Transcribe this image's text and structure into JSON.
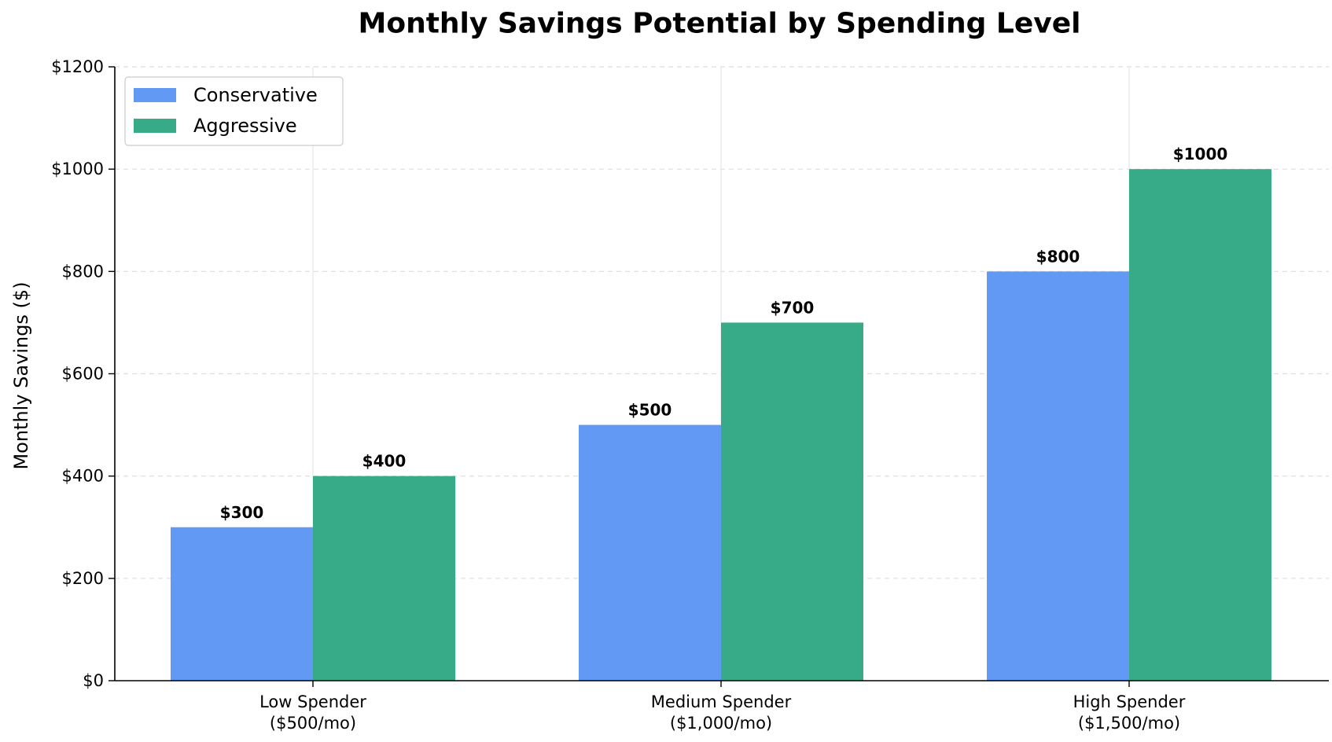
{
  "chart_data": {
    "type": "bar",
    "title": "Monthly Savings Potential by Spending Level",
    "xlabel": "",
    "ylabel": "Monthly Savings ($)",
    "categories": [
      [
        "Low Spender",
        "($500/mo)"
      ],
      [
        "Medium Spender",
        "($1,000/mo)"
      ],
      [
        "High Spender",
        "($1,500/mo)"
      ]
    ],
    "series": [
      {
        "name": "Conservative",
        "values": [
          300,
          500,
          800
        ],
        "labels": [
          "$300",
          "$500",
          "$800"
        ],
        "color": "#6199F5"
      },
      {
        "name": "Aggressive",
        "values": [
          400,
          700,
          1000
        ],
        "labels": [
          "$400",
          "$700",
          "$1000"
        ],
        "color": "#37AA88"
      }
    ],
    "ylim": [
      0,
      1200
    ],
    "yticks": [
      0,
      200,
      400,
      600,
      800,
      1000,
      1200
    ],
    "ytick_labels": [
      "$0",
      "$200",
      "$400",
      "$600",
      "$800",
      "$1000",
      "$1200"
    ],
    "grid": true,
    "legend_position": "top-left"
  }
}
